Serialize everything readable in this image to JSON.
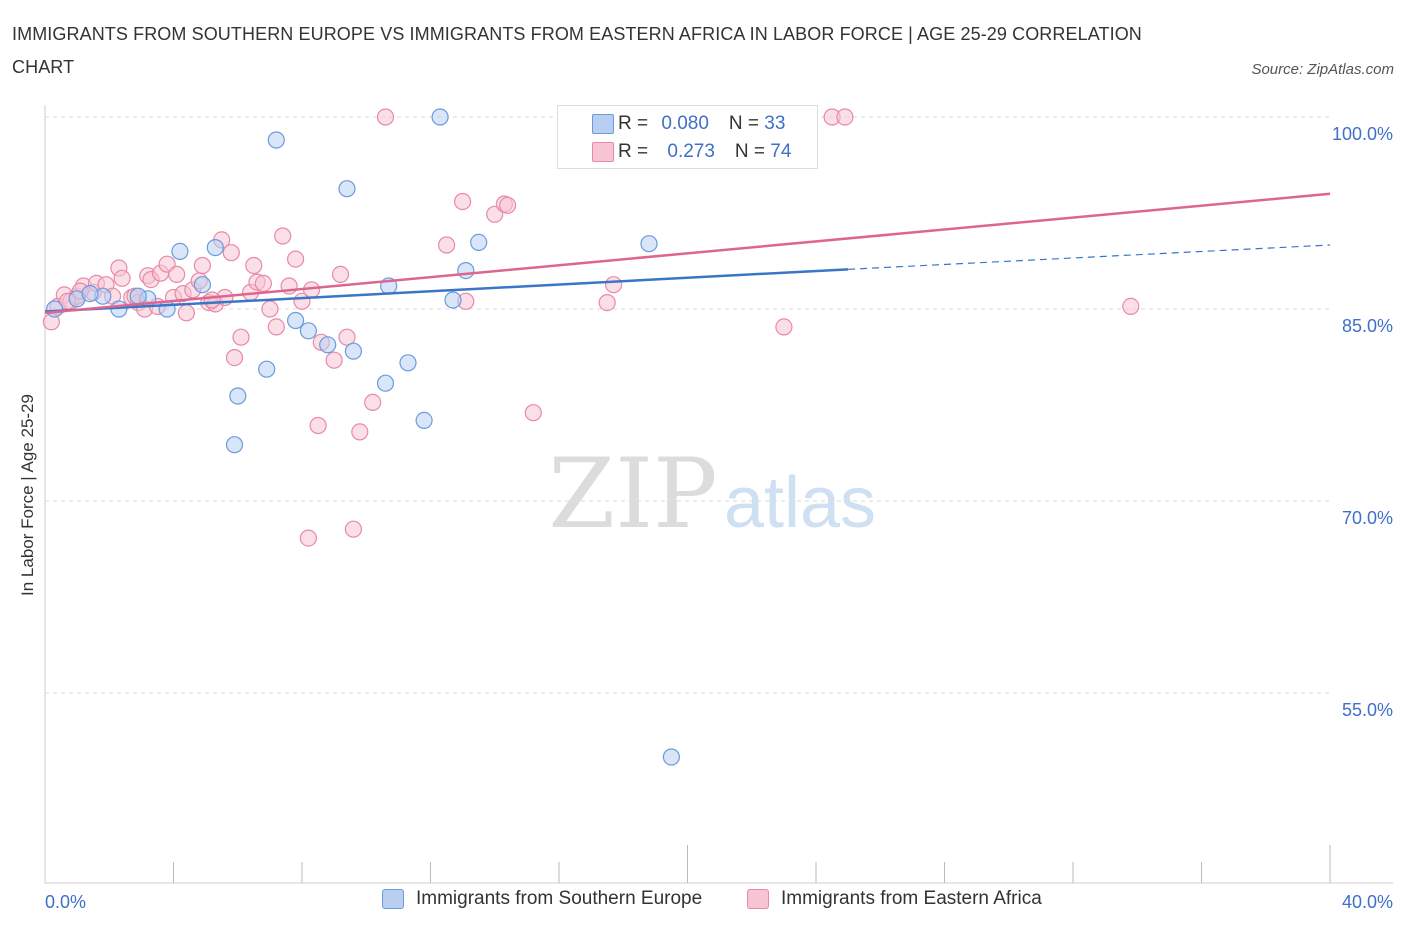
{
  "title": "IMMIGRANTS FROM SOUTHERN EUROPE VS IMMIGRANTS FROM EASTERN AFRICA IN LABOR FORCE | AGE 25-29 CORRELATION CHART",
  "source": "Source: ZipAtlas.com",
  "watermark": {
    "zip": "ZIP",
    "atlas": "atlas"
  },
  "legend": {
    "series1": {
      "r_label": "R = ",
      "r_value": "0.080",
      "n_label": "N = ",
      "n_value": "33"
    },
    "series2": {
      "r_label": "R = ",
      "r_value": "0.273",
      "n_label": "N = ",
      "n_value": "74"
    }
  },
  "chart_data": {
    "type": "scatter",
    "title": "IMMIGRANTS FROM SOUTHERN EUROPE VS IMMIGRANTS FROM EASTERN AFRICA IN LABOR FORCE | AGE 25-29 CORRELATION CHART",
    "xlabel": "",
    "ylabel": "In Labor Force | Age 25-29",
    "xlim": [
      0,
      40
    ],
    "ylim": [
      40,
      100
    ],
    "x_tick_labels": [
      "0.0%",
      "40.0%"
    ],
    "y_ticks": [
      100,
      85,
      70,
      55
    ],
    "y_tick_labels": [
      "100.0%",
      "85.0%",
      "70.0%",
      "55.0%"
    ],
    "grid": true,
    "legend_position": "top-center",
    "series": [
      {
        "name": "Immigrants from Southern Europe",
        "color": "#6b9bdc",
        "fill": "#b9cff2",
        "line_color": "#3a76c8",
        "R": 0.08,
        "N": 33,
        "trend": {
          "x0": 0,
          "y0": 84.8,
          "x1": 25,
          "y1": 88.1,
          "dashed_to_x": 40,
          "dashed_to_y": 90.0
        },
        "points": [
          [
            0.3,
            85.0
          ],
          [
            1.0,
            85.8
          ],
          [
            1.8,
            86.0
          ],
          [
            2.3,
            85.0
          ],
          [
            3.2,
            85.8
          ],
          [
            3.8,
            85.0
          ],
          [
            4.2,
            89.5
          ],
          [
            4.9,
            86.9
          ],
          [
            5.3,
            89.8
          ],
          [
            6.0,
            78.2
          ],
          [
            5.9,
            74.4
          ],
          [
            6.9,
            80.3
          ],
          [
            7.2,
            98.2
          ],
          [
            7.8,
            84.1
          ],
          [
            8.2,
            83.3
          ],
          [
            8.8,
            82.2
          ],
          [
            9.4,
            94.4
          ],
          [
            9.6,
            81.7
          ],
          [
            10.7,
            86.8
          ],
          [
            10.6,
            79.2
          ],
          [
            11.3,
            80.8
          ],
          [
            11.8,
            76.3
          ],
          [
            12.3,
            100.0
          ],
          [
            12.7,
            85.7
          ],
          [
            13.1,
            88.0
          ],
          [
            13.5,
            90.2
          ],
          [
            17.1,
            100.0
          ],
          [
            18.8,
            90.1
          ],
          [
            19.5,
            50.0
          ],
          [
            22.5,
            100.0
          ],
          [
            1.4,
            86.2
          ],
          [
            2.9,
            86.0
          ],
          [
            17.8,
            100.0
          ]
        ]
      },
      {
        "name": "Immigrants from Eastern Africa",
        "color": "#e889a8",
        "fill": "#f7c4d3",
        "line_color": "#de6590",
        "R": 0.273,
        "N": 74,
        "trend": {
          "x0": 0,
          "y0": 84.7,
          "x1": 40,
          "y1": 94.0
        },
        "points": [
          [
            0.2,
            84.0
          ],
          [
            0.4,
            85.2
          ],
          [
            0.6,
            86.1
          ],
          [
            0.8,
            85.6
          ],
          [
            1.0,
            86.0
          ],
          [
            1.2,
            86.8
          ],
          [
            1.5,
            86.3
          ],
          [
            1.6,
            87.0
          ],
          [
            1.9,
            86.9
          ],
          [
            2.1,
            86.0
          ],
          [
            2.3,
            88.2
          ],
          [
            2.4,
            87.4
          ],
          [
            2.7,
            85.9
          ],
          [
            2.9,
            85.5
          ],
          [
            3.1,
            85.0
          ],
          [
            3.2,
            87.6
          ],
          [
            3.3,
            87.3
          ],
          [
            3.5,
            85.2
          ],
          [
            3.6,
            87.8
          ],
          [
            3.8,
            88.5
          ],
          [
            4.0,
            85.9
          ],
          [
            4.1,
            87.7
          ],
          [
            4.3,
            86.2
          ],
          [
            4.4,
            84.7
          ],
          [
            4.6,
            86.5
          ],
          [
            4.8,
            87.2
          ],
          [
            4.9,
            88.4
          ],
          [
            5.1,
            85.5
          ],
          [
            5.3,
            85.4
          ],
          [
            5.5,
            90.4
          ],
          [
            5.6,
            85.9
          ],
          [
            5.8,
            89.4
          ],
          [
            5.9,
            81.2
          ],
          [
            6.1,
            82.8
          ],
          [
            6.4,
            86.3
          ],
          [
            6.5,
            88.4
          ],
          [
            6.6,
            87.1
          ],
          [
            6.8,
            87.0
          ],
          [
            7.0,
            85.0
          ],
          [
            7.2,
            83.6
          ],
          [
            7.4,
            90.7
          ],
          [
            7.6,
            86.8
          ],
          [
            7.8,
            88.9
          ],
          [
            8.0,
            85.6
          ],
          [
            8.3,
            86.5
          ],
          [
            8.5,
            75.9
          ],
          [
            8.6,
            82.4
          ],
          [
            9.0,
            81.0
          ],
          [
            9.2,
            87.7
          ],
          [
            9.4,
            82.8
          ],
          [
            9.8,
            75.4
          ],
          [
            10.2,
            77.7
          ],
          [
            10.6,
            100.0
          ],
          [
            12.5,
            90.0
          ],
          [
            13.0,
            93.4
          ],
          [
            13.1,
            85.6
          ],
          [
            14.0,
            92.4
          ],
          [
            14.3,
            93.2
          ],
          [
            14.4,
            93.1
          ],
          [
            15.2,
            76.9
          ],
          [
            17.5,
            85.5
          ],
          [
            17.7,
            86.9
          ],
          [
            19.5,
            100.0
          ],
          [
            23.1,
            100.0
          ],
          [
            24.5,
            100.0
          ],
          [
            24.9,
            100.0
          ],
          [
            23.0,
            83.6
          ],
          [
            33.8,
            85.2
          ],
          [
            8.2,
            67.1
          ],
          [
            9.6,
            67.8
          ],
          [
            1.1,
            86.4
          ],
          [
            2.8,
            86.0
          ],
          [
            5.2,
            85.7
          ],
          [
            0.7,
            85.6
          ]
        ]
      }
    ]
  },
  "bottom_legend": {
    "item1": "Immigrants from Southern Europe",
    "item2": "Immigrants from Eastern Africa"
  }
}
